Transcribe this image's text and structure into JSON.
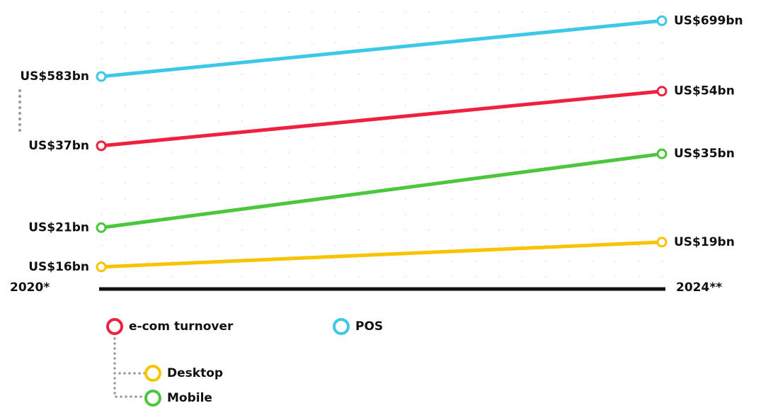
{
  "chart_data": {
    "type": "line",
    "categories": [
      "2020*",
      "2024**"
    ],
    "series": [
      {
        "name": "POS",
        "color": "#3ec8e8",
        "axis": "y2",
        "values": [
          583,
          699
        ],
        "value_labels": [
          "US$583bn",
          "US$699bn"
        ]
      },
      {
        "name": "e-com turnover",
        "color": "#f0213f",
        "values": [
          37,
          54
        ],
        "value_labels": [
          "US$37bn",
          "US$54bn"
        ]
      },
      {
        "name": "Mobile",
        "color": "#4cc63c",
        "values": [
          21,
          35
        ],
        "value_labels": [
          "US$21bn",
          "US$35bn"
        ]
      },
      {
        "name": "Desktop",
        "color": "#f8c400",
        "values": [
          16,
          19
        ],
        "value_labels": [
          "US$16bn",
          "US$19bn"
        ]
      }
    ],
    "ylim": [
      15,
      55
    ],
    "log_scale": true,
    "y2lim": [
      558,
      720
    ]
  }
}
